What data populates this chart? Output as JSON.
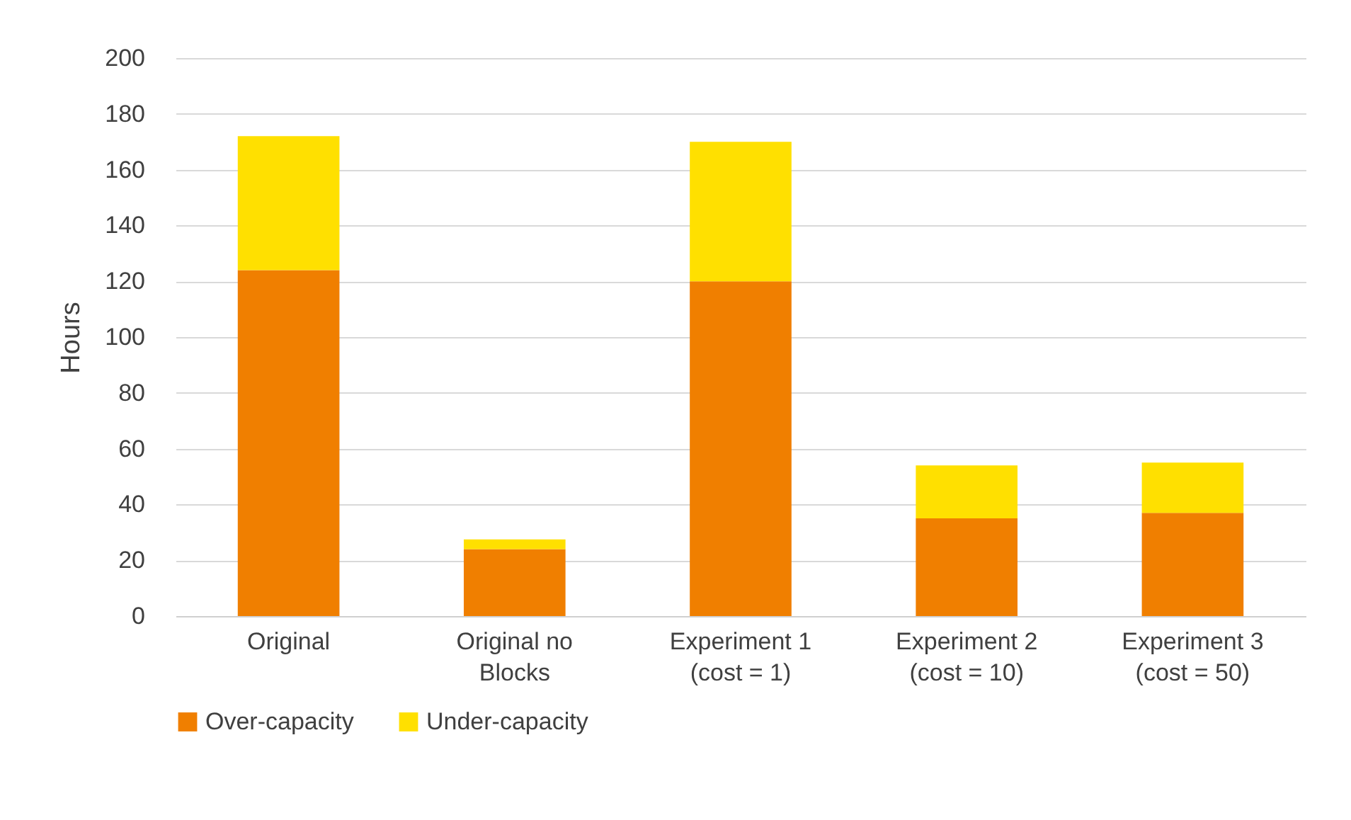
{
  "chart_data": {
    "type": "bar",
    "stacked": true,
    "ylabel": "Hours",
    "categories": [
      "Original",
      "Original no Blocks",
      "Experiment 1 (cost = 1)",
      "Experiment 2 (cost = 10)",
      "Experiment 3 (cost = 50)"
    ],
    "series": [
      {
        "name": "Over-capacity",
        "color": "#f07f00",
        "values": [
          124,
          24,
          120,
          35,
          37
        ]
      },
      {
        "name": "Under-capacity",
        "color": "#ffe000",
        "values": [
          48,
          3.5,
          50,
          19,
          18
        ]
      }
    ],
    "ylim": [
      0,
      200
    ],
    "yticks": [
      0,
      20,
      40,
      60,
      80,
      100,
      120,
      140,
      160,
      180,
      200
    ],
    "grid": "y",
    "legend": "bottom"
  }
}
